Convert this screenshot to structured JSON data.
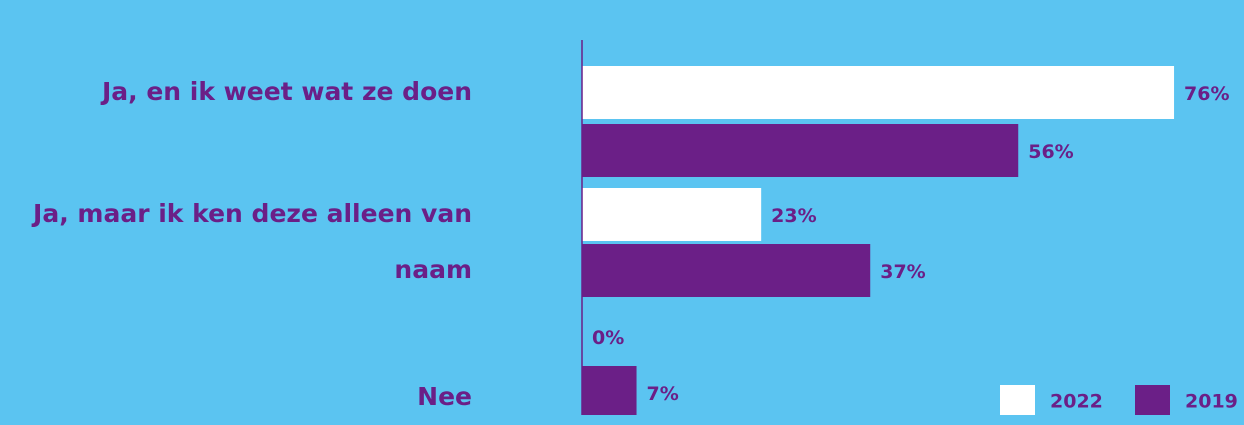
{
  "chart_data": {
    "type": "bar",
    "orientation": "horizontal",
    "categories": [
      "Ja, en ik weet wat ze doen",
      "Ja, maar ik ken deze alleen van naam",
      "Nee"
    ],
    "series": [
      {
        "name": "2022",
        "color": "#ffffff",
        "values": [
          76,
          23,
          0
        ],
        "value_labels": [
          "76%",
          "23%",
          "0%"
        ]
      },
      {
        "name": "2019",
        "color": "#6b1f87",
        "values": [
          56,
          37,
          7
        ],
        "value_labels": [
          "56%",
          "37%",
          "7%"
        ]
      }
    ],
    "xlim": [
      0,
      100
    ],
    "legend": "bottom-right"
  }
}
